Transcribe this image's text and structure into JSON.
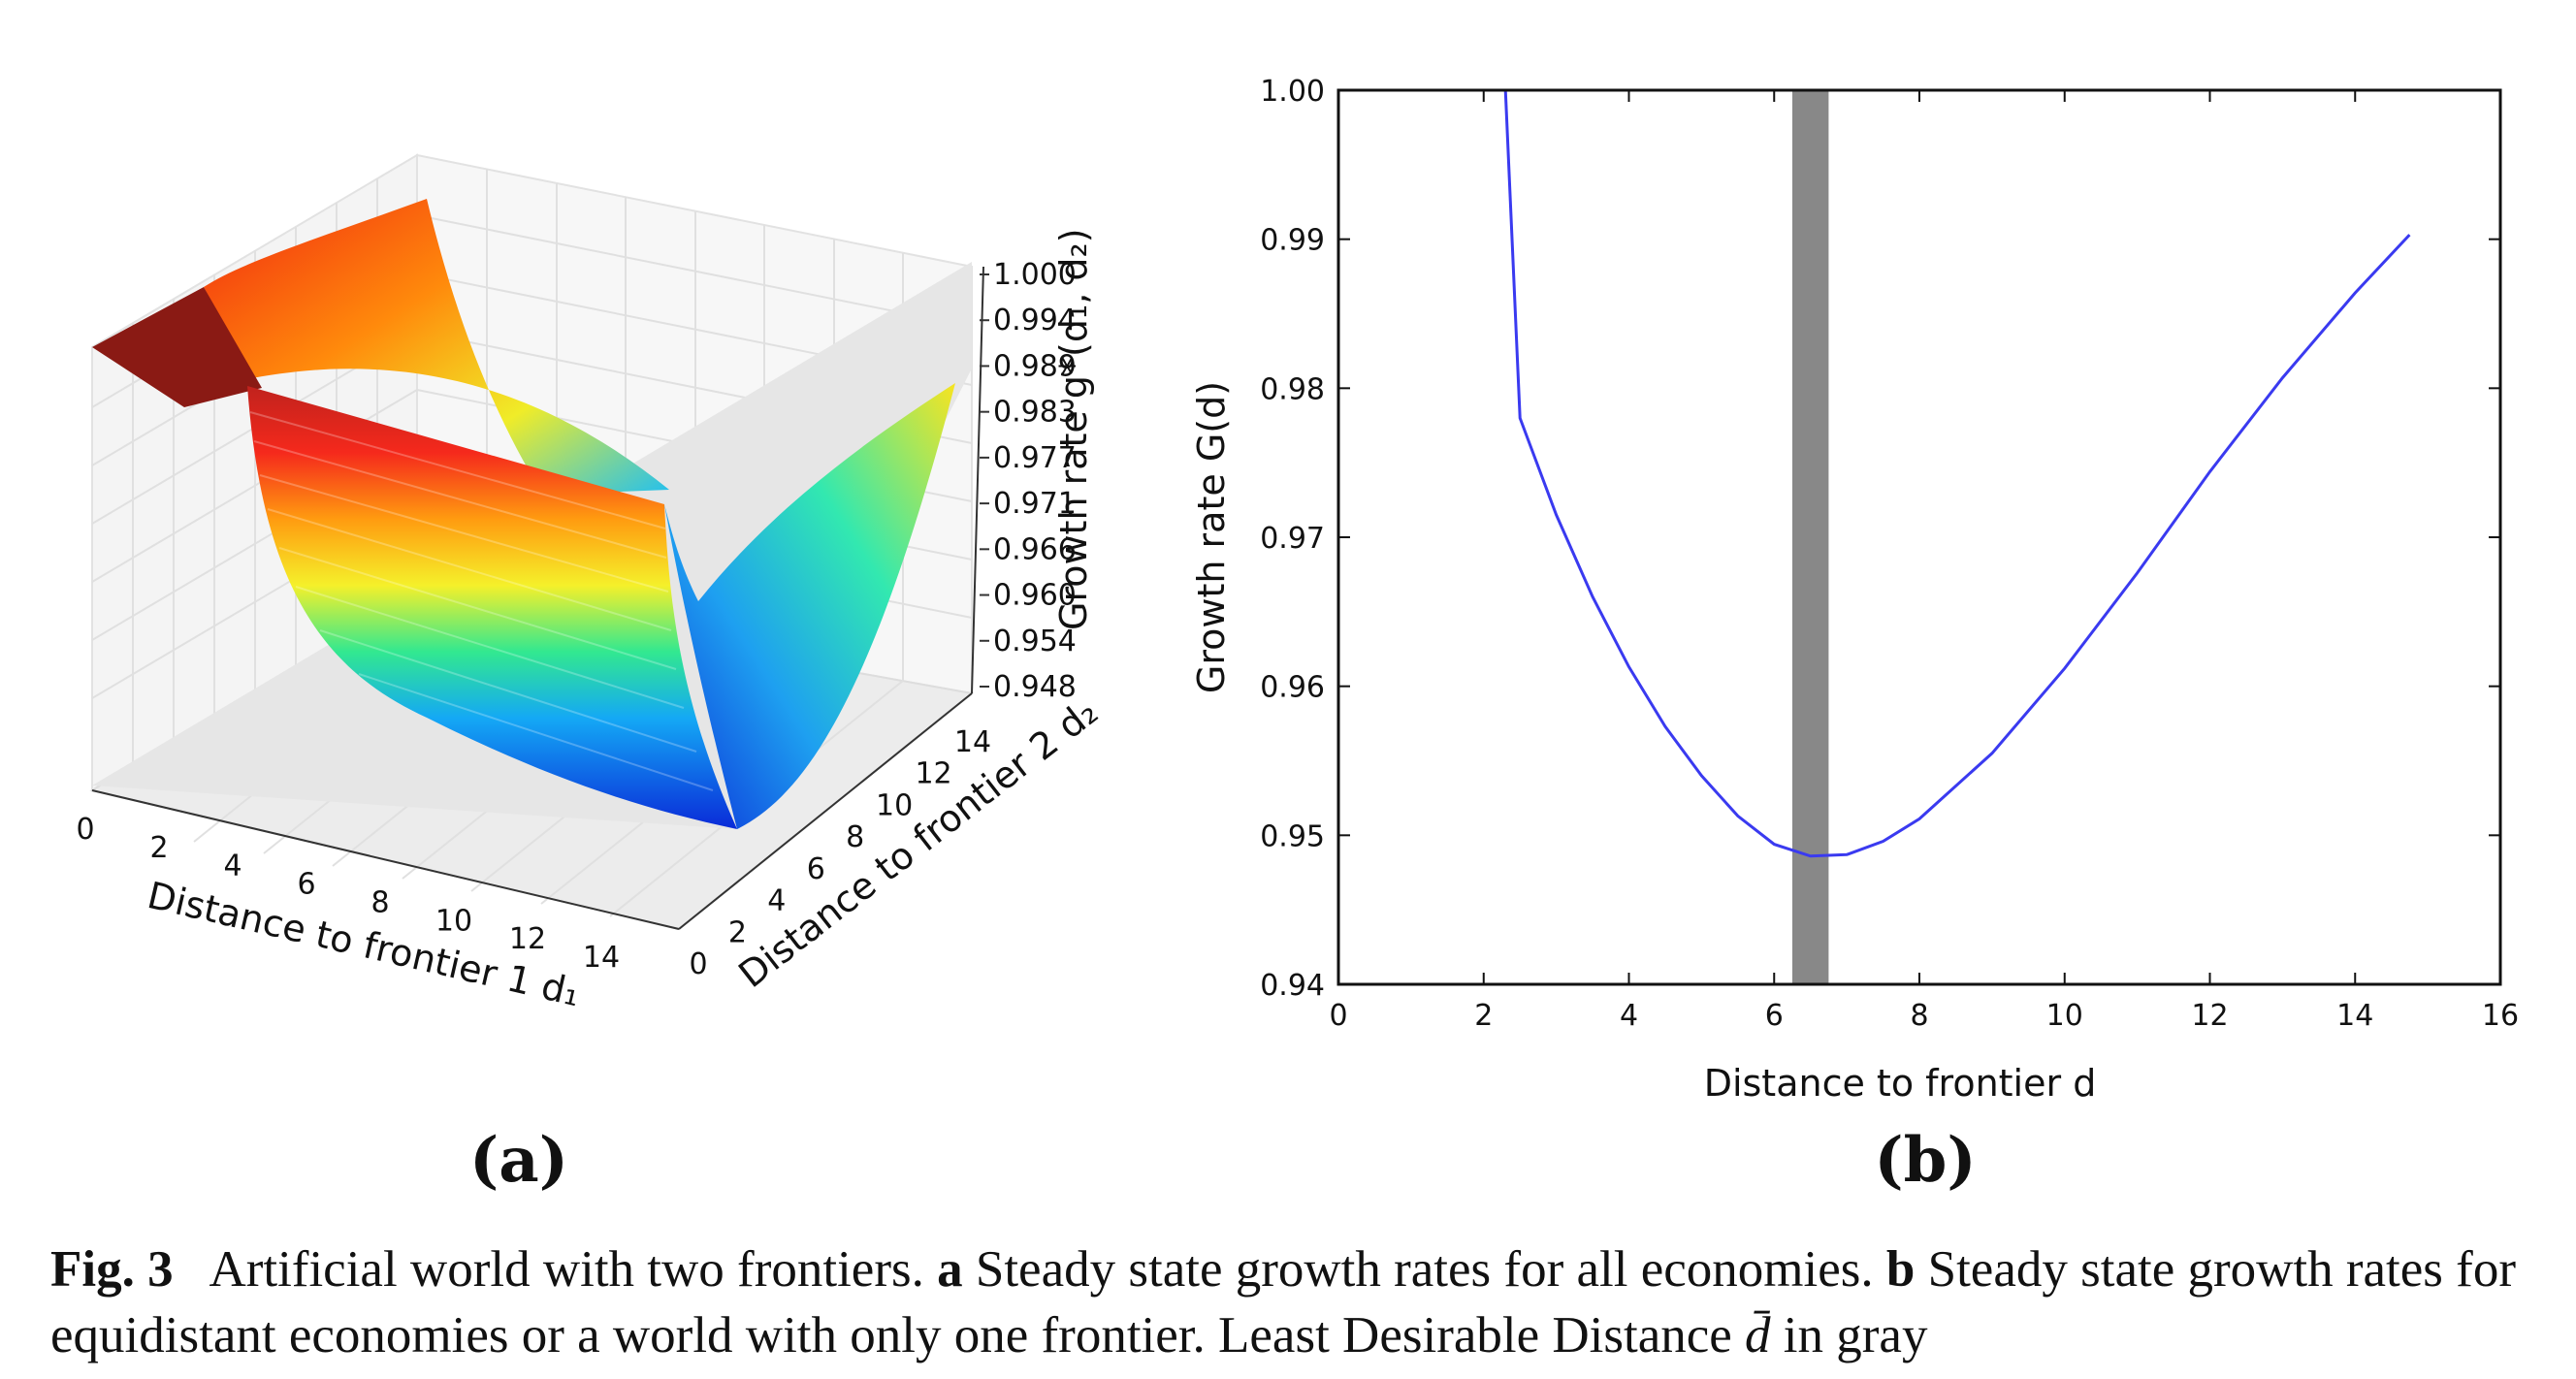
{
  "caption": {
    "label": "Fig. 3",
    "text_1": "Artificial world with two frontiers.",
    "a_label": "a",
    "text_2": "Steady state growth rates for all economies.",
    "b_label": "b",
    "text_3": "Steady state growth rates for equidistant economies or a world with only one frontier. Least Desirable Distance",
    "d_bar": "d̄",
    "text_4": "in gray"
  },
  "panels": {
    "a": "(a)",
    "b": "(b)"
  },
  "chart_data": [
    {
      "type": "surface3d",
      "panel": "(a)",
      "xlabel": "Distance to frontier 1 d₁",
      "ylabel": "Distance to frontier 2 d₂",
      "zlabel": "Growth rate g*(d₁, d₂)",
      "x_ticks": [
        "0",
        "2",
        "4",
        "6",
        "8",
        "10",
        "12",
        "14"
      ],
      "y_ticks": [
        "0",
        "2",
        "4",
        "6",
        "8",
        "10",
        "12",
        "14"
      ],
      "z_ticks": [
        "1.000",
        "0.994",
        "0.989",
        "0.983",
        "0.977",
        "0.971",
        "0.966",
        "0.960",
        "0.954",
        "0.948"
      ],
      "zlim": [
        0.948,
        1.0
      ],
      "colormap": "jet"
    },
    {
      "type": "line",
      "panel": "(b)",
      "xlabel": "Distance to frontier d",
      "ylabel": "Growth rate G(d)",
      "xlim": [
        0,
        16
      ],
      "ylim": [
        0.94,
        1.0
      ],
      "x_ticks": [
        "0",
        "2",
        "4",
        "6",
        "8",
        "10",
        "12",
        "14",
        "16"
      ],
      "y_ticks": [
        "0.94",
        "0.95",
        "0.96",
        "0.97",
        "0.98",
        "0.99",
        "1.00"
      ],
      "series": [
        {
          "color": "#3a3af0",
          "x": [
            2.3,
            2.5,
            3.0,
            3.5,
            4.0,
            4.5,
            5.0,
            5.5,
            6.0,
            6.5,
            7.0,
            7.5,
            8.0,
            9.0,
            10.0,
            11.0,
            12.0,
            13.0,
            14.0,
            14.75
          ],
          "y": [
            1.0,
            0.978,
            0.9715,
            0.966,
            0.9613,
            0.9573,
            0.954,
            0.9513,
            0.9494,
            0.9486,
            0.9487,
            0.9496,
            0.9511,
            0.9555,
            0.9612,
            0.9676,
            0.9744,
            0.9807,
            0.9864,
            0.9903
          ]
        }
      ],
      "highlight_band": {
        "x": [
          6.25,
          6.75
        ],
        "color": "#888888"
      }
    }
  ]
}
